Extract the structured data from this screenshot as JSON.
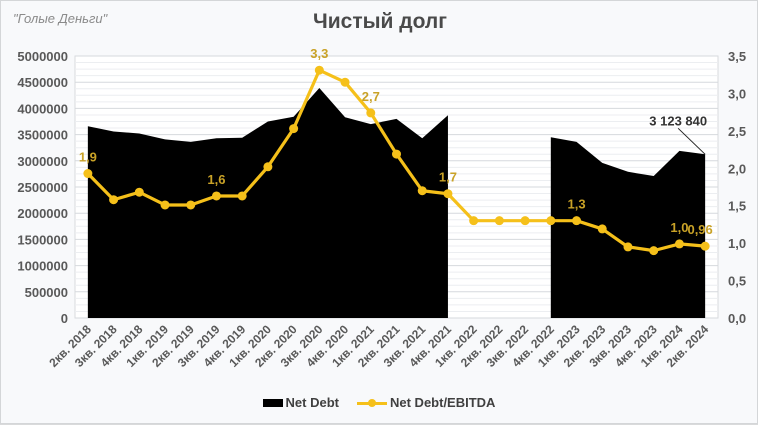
{
  "watermark": "\"Голые Деньги\"",
  "title": "Чистый долг",
  "legend": {
    "net_debt": "Net Debt",
    "ratio": "Net Debt/EBITDA"
  },
  "colors": {
    "area": "#000000",
    "line": "#f5c01a",
    "label": "#c9a227",
    "grid": "#dcdfe3"
  },
  "chart_data": {
    "type": "area+line",
    "title": "Чистый долг",
    "categories": [
      "2кв. 2018",
      "3кв. 2018",
      "4кв. 2018",
      "1кв. 2019",
      "2кв. 2019",
      "3кв. 2019",
      "4кв. 2019",
      "1кв. 2020",
      "2кв. 2020",
      "3кв. 2020",
      "4кв. 2020",
      "1кв. 2021",
      "2кв. 2021",
      "3кв. 2021",
      "4кв. 2021",
      "1кв. 2022",
      "2кв. 2022",
      "3кв. 2022",
      "4кв. 2022",
      "1кв. 2023",
      "2кв. 2023",
      "3кв. 2023",
      "4кв. 2023",
      "1кв. 2024",
      "2кв. 2024"
    ],
    "series": [
      {
        "name": "Net Debt",
        "type": "area",
        "axis": "left",
        "values": [
          3660000,
          3560000,
          3520000,
          3410000,
          3360000,
          3430000,
          3440000,
          3750000,
          3840000,
          4390000,
          3830000,
          3700000,
          3800000,
          3430000,
          3870000,
          null,
          null,
          null,
          3450000,
          3360000,
          2960000,
          2790000,
          2710000,
          3190000,
          3123840
        ]
      },
      {
        "name": "Net Debt/EBITDA",
        "type": "line",
        "axis": "right",
        "values": [
          1.93,
          1.58,
          1.68,
          1.51,
          1.51,
          1.63,
          1.63,
          2.02,
          2.53,
          3.31,
          3.15,
          2.74,
          2.19,
          1.7,
          1.66,
          1.3,
          1.3,
          1.3,
          1.3,
          1.3,
          1.19,
          0.95,
          0.9,
          0.99,
          0.96
        ]
      }
    ],
    "data_labels": [
      {
        "series": "Net Debt/EBITDA",
        "index": 0,
        "text": "1,9"
      },
      {
        "series": "Net Debt/EBITDA",
        "index": 5,
        "text": "1,6"
      },
      {
        "series": "Net Debt/EBITDA",
        "index": 9,
        "text": "3,3"
      },
      {
        "series": "Net Debt/EBITDA",
        "index": 11,
        "text": "2,7"
      },
      {
        "series": "Net Debt/EBITDA",
        "index": 14,
        "text": "1,7"
      },
      {
        "series": "Net Debt/EBITDA",
        "index": 19,
        "text": "1,3"
      },
      {
        "series": "Net Debt/EBITDA",
        "index": 23,
        "text": "1,0"
      },
      {
        "series": "Net Debt/EBITDA",
        "index": 24,
        "text": "0,96"
      },
      {
        "series": "Net Debt",
        "index": 24,
        "text": "3 123 840"
      }
    ],
    "left_axis": {
      "min": 0,
      "max": 5000000,
      "step": 500000,
      "ticks": [
        "0",
        "500000",
        "1000000",
        "1500000",
        "2000000",
        "2500000",
        "3000000",
        "3500000",
        "4000000",
        "4500000",
        "5000000"
      ]
    },
    "right_axis": {
      "min": 0,
      "max": 3.5,
      "step": 0.5,
      "ticks": [
        "0,0",
        "0,5",
        "1,0",
        "1,5",
        "2,0",
        "2,5",
        "3,0",
        "3,5"
      ]
    },
    "xlabel": "",
    "ylabel": "",
    "grid": true,
    "legend_position": "bottom"
  }
}
